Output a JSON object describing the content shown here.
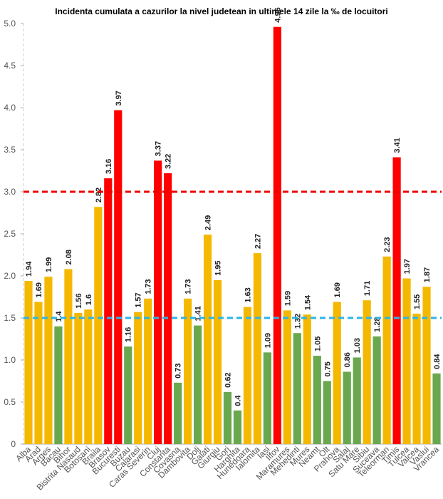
{
  "chart_data": {
    "type": "bar",
    "title": "Incidenta cumulata a cazurilor la nivel judetean in ultimele 14 zile la ‰ de locuitori",
    "categories": [
      "Alba",
      "Arad",
      "Arges",
      "Bacau",
      "Bihor",
      "Bistrita Nasaud",
      "Botosani",
      "Braila",
      "Brasov",
      "Bucuresti",
      "Buzau",
      "Calarasi",
      "Caras Severin",
      "Cluj",
      "Constanta",
      "Covasna",
      "Dambovita",
      "Dolj",
      "Galati",
      "Giurgiu",
      "Gorj",
      "Harghita",
      "Hunedoara",
      "Ialomita",
      "Iasi",
      "Ilfov",
      "Maramures",
      "Mehedinti",
      "Mures",
      "Neamt",
      "Olt",
      "Prahova",
      "Salaj",
      "Satu Mare",
      "Sibiu",
      "Suceava",
      "Teleorman",
      "Timis",
      "Tulcea",
      "Valcea",
      "Vaslui",
      "Vrancea"
    ],
    "values": [
      1.94,
      1.69,
      1.99,
      1.4,
      2.08,
      1.56,
      1.6,
      2.82,
      3.16,
      3.97,
      1.16,
      1.57,
      1.73,
      3.37,
      3.22,
      0.73,
      1.73,
      1.41,
      2.49,
      1.95,
      0.62,
      0.4,
      1.63,
      2.27,
      1.09,
      4.96,
      1.59,
      1.32,
      1.54,
      1.05,
      0.75,
      1.69,
      0.86,
      1.03,
      1.71,
      1.28,
      2.23,
      3.41,
      1.97,
      1.55,
      1.87,
      0.84
    ],
    "colors": [
      "#f5b800",
      "#f5b800",
      "#f5b800",
      "#6aa84f",
      "#f5b800",
      "#f5b800",
      "#f5b800",
      "#f5b800",
      "#ff0000",
      "#ff0000",
      "#6aa84f",
      "#f5b800",
      "#f5b800",
      "#ff0000",
      "#ff0000",
      "#6aa84f",
      "#f5b800",
      "#6aa84f",
      "#f5b800",
      "#f5b800",
      "#6aa84f",
      "#6aa84f",
      "#f5b800",
      "#f5b800",
      "#6aa84f",
      "#ff0000",
      "#f5b800",
      "#6aa84f",
      "#f5b800",
      "#6aa84f",
      "#6aa84f",
      "#f5b800",
      "#6aa84f",
      "#6aa84f",
      "#f5b800",
      "#6aa84f",
      "#f5b800",
      "#ff0000",
      "#f5b800",
      "#f5b800",
      "#f5b800",
      "#6aa84f"
    ],
    "ylim": [
      0,
      5
    ],
    "yticks": [
      0,
      0.5,
      {
        "value": 1,
        "label": "1.0"
      },
      1.5,
      {
        "value": 2,
        "label": "2.0"
      },
      2.5,
      {
        "value": 3,
        "label": "3.0"
      },
      3.5,
      {
        "value": 4,
        "label": "4.0"
      },
      4.5,
      {
        "value": 5,
        "label": "5.0"
      }
    ],
    "reference_lines": [
      {
        "value": 3,
        "color": "#ee0000"
      },
      {
        "value": 1.5,
        "color": "#2bb5e6"
      }
    ]
  }
}
